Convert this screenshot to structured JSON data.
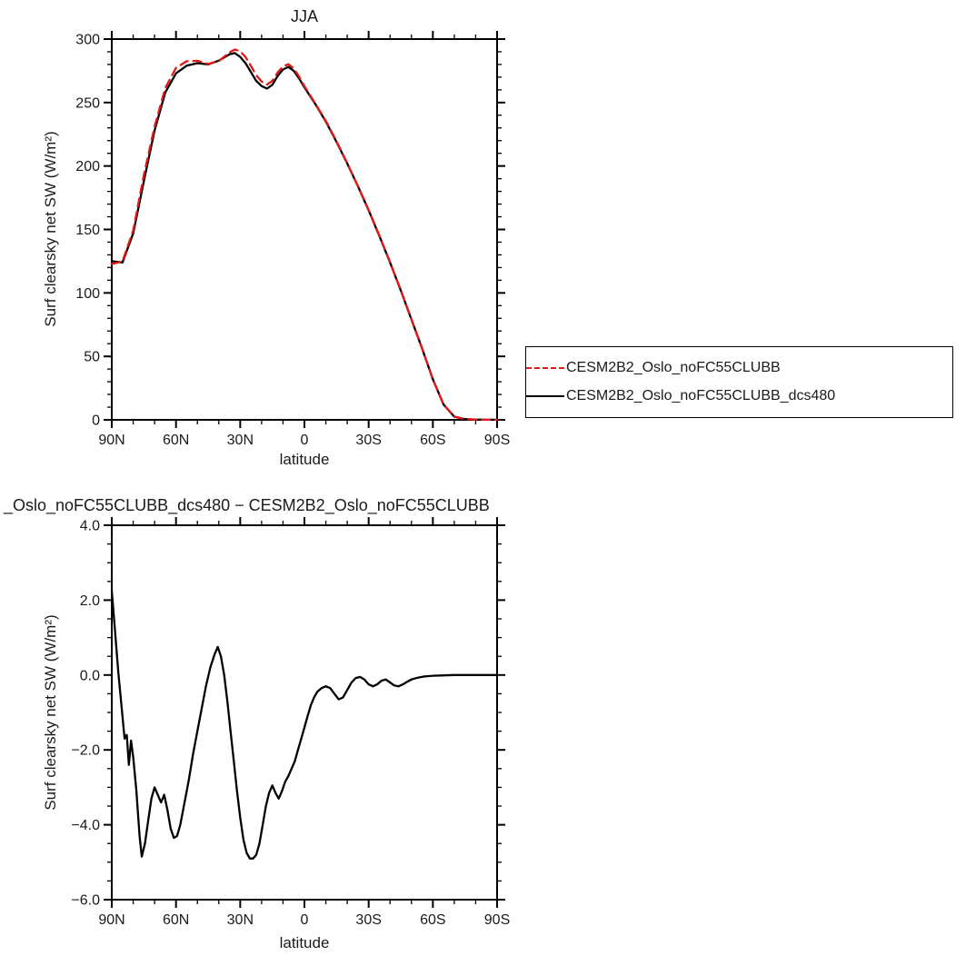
{
  "page": {
    "background": "#ffffff",
    "text_color": "#1a1a1a"
  },
  "chart_data": [
    {
      "type": "line",
      "title": "JJA",
      "xlabel": "latitude",
      "ylabel": "Surf clearsky net SW (W/m²)",
      "xlim": [
        90,
        -90
      ],
      "ylim": [
        0,
        300
      ],
      "grid": false,
      "legend_position": "outside-right-bottom",
      "xticks": [
        90,
        60,
        30,
        0,
        -30,
        -60,
        -90
      ],
      "xtick_labels": [
        "90N",
        "60N",
        "30N",
        "0",
        "30S",
        "60S",
        "90S"
      ],
      "xminor": [
        80,
        70,
        50,
        40,
        20,
        10,
        -10,
        -20,
        -40,
        -50,
        -70,
        -80
      ],
      "yticks": [
        0,
        50,
        100,
        150,
        200,
        250,
        300
      ],
      "ytick_labels": [
        "0",
        "50",
        "100",
        "150",
        "200",
        "250",
        "300"
      ],
      "yminor": [
        10,
        20,
        30,
        40,
        60,
        70,
        80,
        90,
        110,
        120,
        130,
        140,
        160,
        170,
        180,
        190,
        210,
        220,
        230,
        240,
        260,
        270,
        280,
        290
      ],
      "x": [
        90,
        85,
        80,
        75,
        70,
        65,
        60,
        55,
        50,
        45,
        40,
        35,
        32.5,
        30,
        27.5,
        25,
        22.5,
        20,
        17.5,
        15,
        12.5,
        10,
        7.5,
        5,
        2.5,
        0,
        -5,
        -10,
        -15,
        -20,
        -25,
        -30,
        -35,
        -40,
        -45,
        -50,
        -55,
        -60,
        -65,
        -70,
        -75,
        -80,
        -85,
        -90
      ],
      "series": [
        {
          "name": "CESM2B2_Oslo_noFC55CLUBB",
          "color": "#e21717",
          "dash": "9,6",
          "values": [
            122.8,
            124.9,
            149.3,
            192.9,
            231.0,
            261.5,
            277.3,
            282.5,
            282.9,
            280.4,
            282.7,
            289.5,
            291.8,
            290.4,
            285.9,
            278.9,
            271.4,
            266.5,
            264.1,
            267.1,
            273.7,
            278.4,
            280.2,
            276.9,
            270.4,
            262.9,
            249.3,
            235.5,
            219.5,
            202.1,
            184.1,
            165.3,
            145.3,
            124.2,
            102.2,
            79.2,
            56.1,
            32.0,
            12.0,
            2.5,
            0.6,
            0.2,
            0.1,
            0.1
          ]
        },
        {
          "name": "CESM2B2_Oslo_noFC55CLUBB_dcs480",
          "color": "#000000",
          "dash": "none",
          "values": [
            125,
            124,
            147,
            188,
            228,
            258,
            273,
            279,
            281,
            280,
            283,
            288,
            289,
            286,
            281,
            274,
            267,
            263,
            261,
            264,
            271,
            276,
            278,
            275,
            269,
            262,
            249,
            235,
            219,
            202,
            184,
            165,
            145,
            124,
            102,
            79,
            56,
            32,
            12,
            2.5,
            0.6,
            0.2,
            0.1,
            0.1
          ]
        }
      ]
    },
    {
      "type": "line",
      "title": "_Oslo_noFC55CLUBB_dcs480 − CESM2B2_Oslo_noFC55CLUBB",
      "xlabel": "latitude",
      "ylabel": "Surf clearsky net SW (W/m²)",
      "xlim": [
        90,
        -90
      ],
      "ylim": [
        -6,
        4
      ],
      "grid": false,
      "xticks": [
        90,
        60,
        30,
        0,
        -30,
        -60,
        -90
      ],
      "xtick_labels": [
        "90N",
        "60N",
        "30N",
        "0",
        "30S",
        "60S",
        "90S"
      ],
      "xminor": [
        80,
        70,
        50,
        40,
        20,
        10,
        -10,
        -20,
        -40,
        -50,
        -70,
        -80
      ],
      "yticks": [
        -6,
        -4,
        -2,
        0,
        2,
        4
      ],
      "ytick_labels": [
        "−6.0",
        "−4.0",
        "−2.0",
        "0.0",
        "2.0",
        "4.0"
      ],
      "yminor": [
        -5.5,
        -5,
        -4.5,
        -3.5,
        -3,
        -2.5,
        -1.5,
        -1,
        -0.5,
        0.5,
        1,
        1.5,
        2.5,
        3,
        3.5
      ],
      "x": [
        90,
        88.5,
        87,
        85.5,
        84,
        83,
        82,
        81,
        80,
        78.5,
        77,
        76,
        74.5,
        73,
        71.5,
        70,
        68.5,
        67,
        65.5,
        64,
        62.5,
        61,
        59.5,
        58,
        56,
        54,
        52,
        50,
        48,
        46,
        44,
        42,
        40.5,
        39,
        37.5,
        36,
        34.5,
        33,
        31.5,
        30,
        28.5,
        27,
        25.5,
        24,
        22.5,
        21,
        19.5,
        18,
        16.5,
        15,
        13.5,
        12,
        10.5,
        9,
        7.5,
        6,
        4.5,
        3,
        1.5,
        0,
        -1.5,
        -3,
        -4.5,
        -6,
        -8,
        -10,
        -12,
        -14,
        -16,
        -18,
        -20,
        -22,
        -24,
        -26,
        -28,
        -30,
        -32,
        -34,
        -36,
        -38,
        -40,
        -42,
        -44,
        -46,
        -48,
        -50,
        -53,
        -56,
        -60,
        -65,
        -70,
        -75,
        -80,
        -85,
        -90
      ],
      "series": [
        {
          "color": "#000000",
          "dash": "none",
          "values": [
            2.25,
            1.2,
            0.1,
            -0.8,
            -1.7,
            -1.6,
            -2.4,
            -1.75,
            -2.2,
            -3.1,
            -4.3,
            -4.85,
            -4.5,
            -3.9,
            -3.3,
            -3.0,
            -3.2,
            -3.4,
            -3.2,
            -3.6,
            -4.1,
            -4.35,
            -4.3,
            -4.0,
            -3.4,
            -2.8,
            -2.1,
            -1.5,
            -0.9,
            -0.3,
            0.2,
            0.55,
            0.75,
            0.5,
            0.0,
            -0.7,
            -1.5,
            -2.3,
            -3.1,
            -3.8,
            -4.4,
            -4.75,
            -4.9,
            -4.9,
            -4.8,
            -4.5,
            -4.0,
            -3.5,
            -3.15,
            -2.95,
            -3.15,
            -3.3,
            -3.1,
            -2.85,
            -2.7,
            -2.5,
            -2.3,
            -2.0,
            -1.7,
            -1.4,
            -1.1,
            -0.8,
            -0.6,
            -0.45,
            -0.35,
            -0.3,
            -0.35,
            -0.5,
            -0.65,
            -0.6,
            -0.4,
            -0.2,
            -0.08,
            -0.05,
            -0.12,
            -0.25,
            -0.3,
            -0.25,
            -0.15,
            -0.12,
            -0.2,
            -0.28,
            -0.3,
            -0.25,
            -0.18,
            -0.12,
            -0.07,
            -0.04,
            -0.02,
            -0.01,
            0,
            0,
            0,
            0,
            0
          ]
        }
      ]
    }
  ]
}
